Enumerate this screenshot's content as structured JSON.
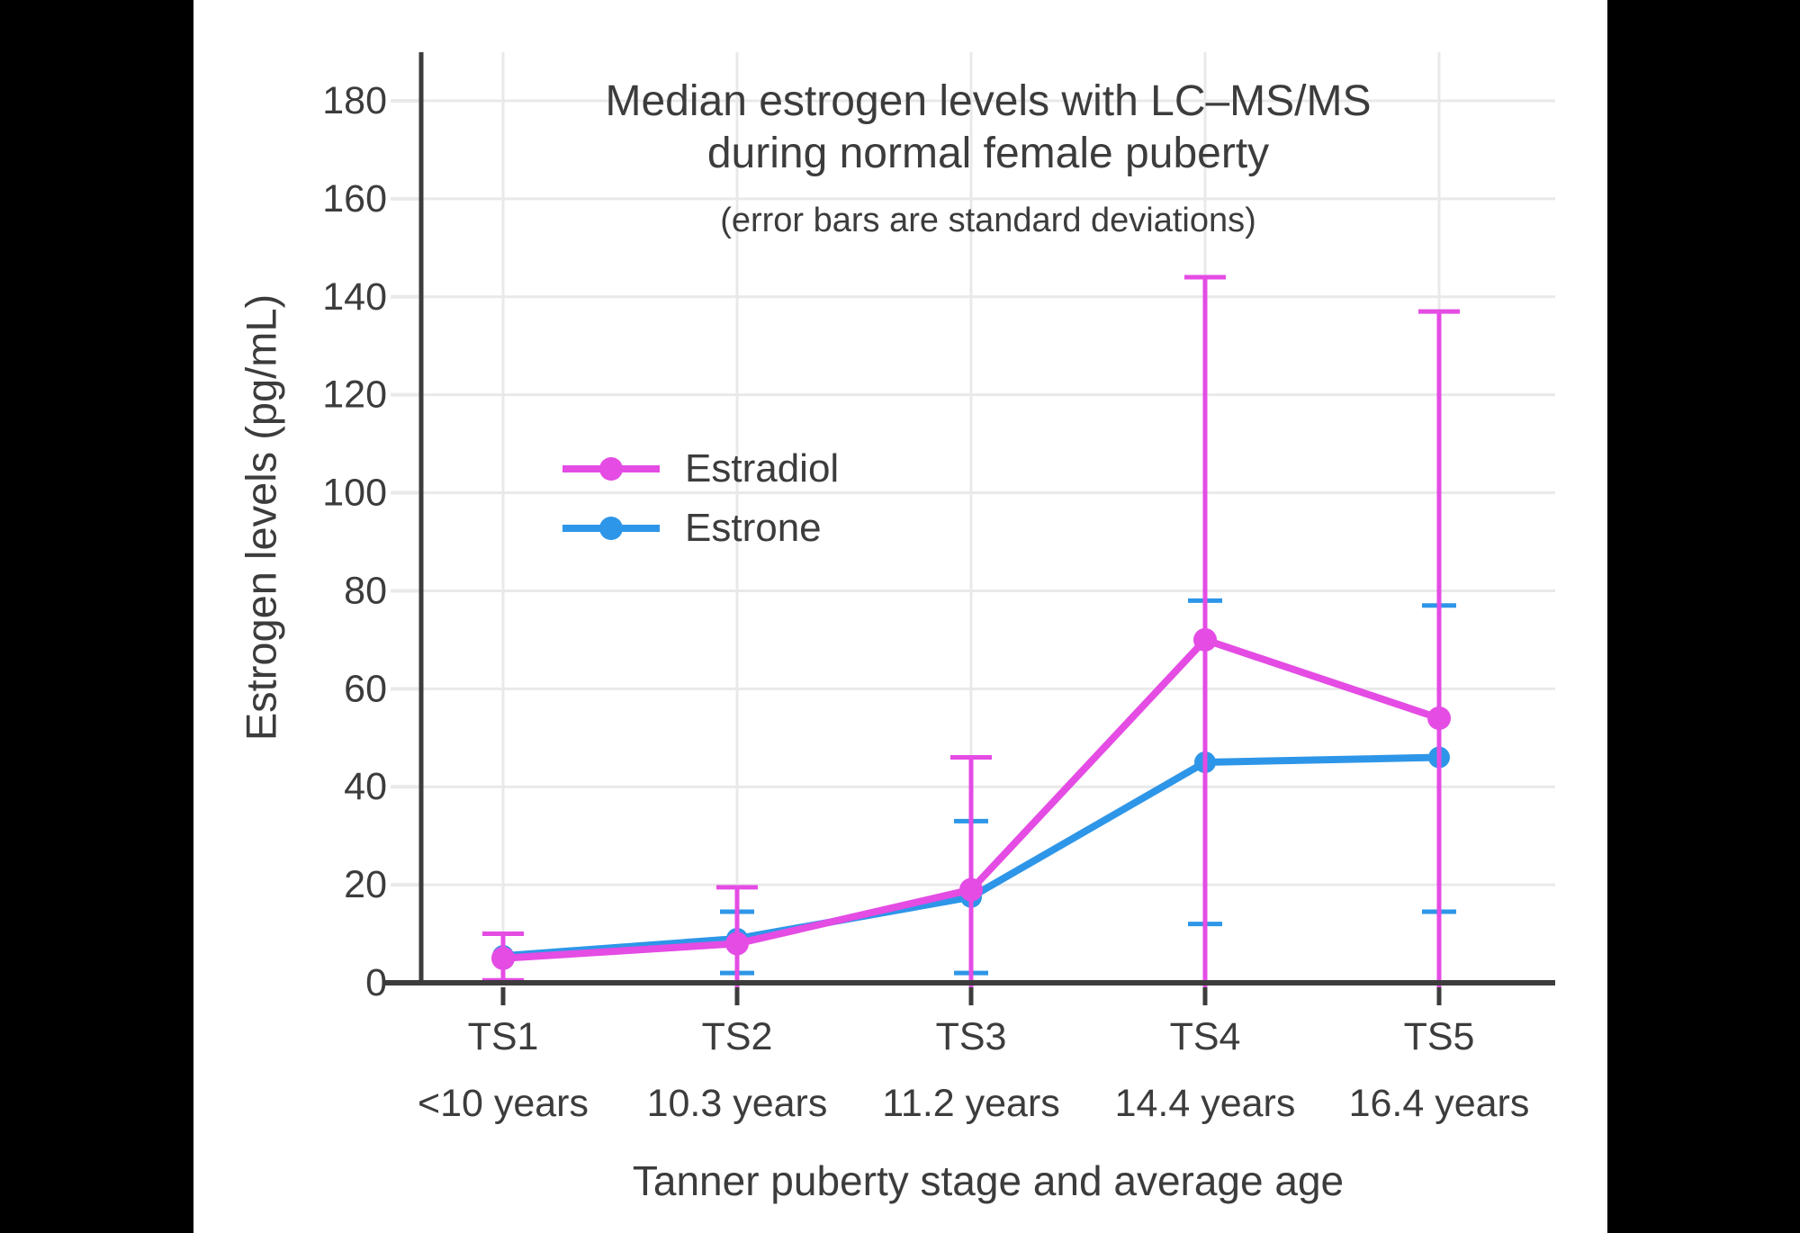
{
  "chart_data": {
    "type": "line",
    "title": "Median estrogen levels with LC–MS/MS during normal female puberty",
    "title_lines": [
      "Median estrogen levels with LC–MS/MS",
      "during normal female puberty"
    ],
    "subtitle": "(error bars are standard deviations)",
    "xlabel": "Tanner puberty stage and average age",
    "ylabel": "Estrogen levels (pg/mL)",
    "categories": [
      "TS1",
      "TS2",
      "TS3",
      "TS4",
      "TS5"
    ],
    "category_ages": [
      "<10 years",
      "10.3 years",
      "11.2 years",
      "14.4 years",
      "16.4 years"
    ],
    "y_ticks": [
      0,
      20,
      40,
      60,
      80,
      100,
      120,
      140,
      160,
      180
    ],
    "ylim": [
      0,
      190
    ],
    "grid": true,
    "units": "pg/mL",
    "legend": {
      "position": "inside-upper-left",
      "items": [
        {
          "label": "Estradiol",
          "color": "#E44CE4"
        },
        {
          "label": "Estrone",
          "color": "#2E96E8"
        }
      ]
    },
    "series": [
      {
        "name": "Estrone",
        "color": "#2E96E8",
        "values": [
          5.5,
          9,
          17.5,
          45,
          46
        ],
        "error_high": [
          null,
          14.5,
          33,
          78,
          77
        ],
        "error_low": [
          null,
          2,
          2,
          12,
          14.5
        ]
      },
      {
        "name": "Estradiol",
        "color": "#E44CE4",
        "values": [
          5,
          8,
          19,
          70,
          54
        ],
        "error_high": [
          10,
          19.5,
          46,
          144,
          137
        ],
        "error_low": [
          0.5,
          null,
          null,
          null,
          null
        ]
      }
    ],
    "colors": {
      "background": "#FFFFFF",
      "letterbox": "#000000",
      "text": "#3C3C3C",
      "axis": "#3C3C3C",
      "grid": "#E9E9E9",
      "estradiol": "#E44CE4",
      "estrone": "#2E96E8"
    }
  }
}
